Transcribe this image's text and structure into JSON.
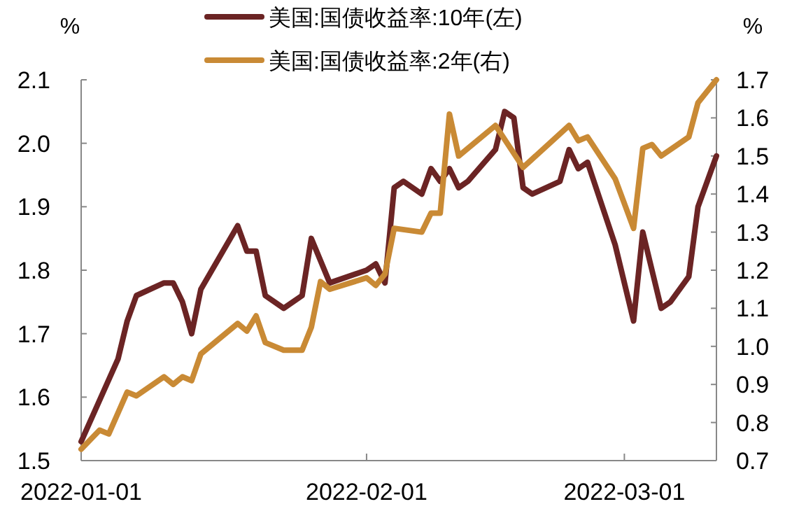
{
  "chart_data": {
    "type": "line",
    "ylabel": "%",
    "y2label": "%",
    "legend": "top",
    "grid": false,
    "marker": "none",
    "line_style": "solid",
    "xlim": [
      "2022-01-01",
      "2022-03-11"
    ],
    "xticks": [
      "2022-01-01",
      "2022-02-01",
      "2022-03-01"
    ],
    "ylim": [
      1.5,
      2.1
    ],
    "yticks": [
      1.5,
      1.6,
      1.7,
      1.8,
      1.9,
      {
        "value": 2,
        "label": "2.0"
      },
      2.1
    ],
    "y2lim": [
      0.7,
      1.7
    ],
    "y2ticks": [
      0.7,
      0.8,
      0.9,
      {
        "value": 1,
        "label": "1.0"
      },
      1.1,
      1.2,
      1.3,
      1.4,
      1.5,
      1.6,
      1.7
    ],
    "series": [
      {
        "name": "美国:国债收益率:10年(左)",
        "color": "#6b2424",
        "x": [
          "2022-01-01",
          "2022-01-05",
          "2022-01-06",
          "2022-01-07",
          "2022-01-10",
          "2022-01-11",
          "2022-01-12",
          "2022-01-13",
          "2022-01-14",
          "2022-01-18",
          "2022-01-19",
          "2022-01-20",
          "2022-01-21",
          "2022-01-23",
          "2022-01-25",
          "2022-01-26",
          "2022-01-28",
          "2022-02-01",
          "2022-02-02",
          "2022-02-03",
          "2022-02-04",
          "2022-02-05",
          "2022-02-07",
          "2022-02-08",
          "2022-02-09",
          "2022-02-10",
          "2022-02-11",
          "2022-02-12",
          "2022-02-15",
          "2022-02-16",
          "2022-02-17",
          "2022-02-18",
          "2022-02-19",
          "2022-02-22",
          "2022-02-23",
          "2022-02-24",
          "2022-02-25",
          "2022-02-28",
          "2022-03-02",
          "2022-03-03",
          "2022-03-05",
          "2022-03-06",
          "2022-03-08",
          "2022-03-09",
          "2022-03-11"
        ],
        "values": [
          1.53,
          1.66,
          1.72,
          1.76,
          1.78,
          1.78,
          1.75,
          1.7,
          1.77,
          1.87,
          1.83,
          1.83,
          1.76,
          1.74,
          1.76,
          1.85,
          1.78,
          1.8,
          1.81,
          1.78,
          1.93,
          1.94,
          1.92,
          1.96,
          1.94,
          1.96,
          1.93,
          1.94,
          1.99,
          2.05,
          2.04,
          1.93,
          1.92,
          1.94,
          1.99,
          1.96,
          1.97,
          1.84,
          1.72,
          1.86,
          1.74,
          1.75,
          1.79,
          1.9,
          1.98
        ]
      },
      {
        "name": "美国:国债收益率:2年(右)",
        "color": "#c98a35",
        "axis": "y2",
        "x": [
          "2022-01-01",
          "2022-01-03",
          "2022-01-04",
          "2022-01-06",
          "2022-01-07",
          "2022-01-10",
          "2022-01-11",
          "2022-01-12",
          "2022-01-13",
          "2022-01-14",
          "2022-01-18",
          "2022-01-19",
          "2022-01-20",
          "2022-01-21",
          "2022-01-23",
          "2022-01-25",
          "2022-01-26",
          "2022-01-27",
          "2022-01-28",
          "2022-02-01",
          "2022-02-02",
          "2022-02-03",
          "2022-02-04",
          "2022-02-07",
          "2022-02-08",
          "2022-02-09",
          "2022-02-10",
          "2022-02-11",
          "2022-02-15",
          "2022-02-18",
          "2022-02-23",
          "2022-02-24",
          "2022-02-25",
          "2022-02-28",
          "2022-03-02",
          "2022-03-03",
          "2022-03-04",
          "2022-03-05",
          "2022-03-08",
          "2022-03-09",
          "2022-03-11"
        ],
        "values": [
          0.73,
          0.78,
          0.77,
          0.88,
          0.87,
          0.92,
          0.9,
          0.92,
          0.91,
          0.98,
          1.06,
          1.04,
          1.08,
          1.01,
          0.99,
          0.99,
          1.05,
          1.17,
          1.15,
          1.18,
          1.16,
          1.19,
          1.31,
          1.3,
          1.35,
          1.35,
          1.61,
          1.5,
          1.58,
          1.47,
          1.58,
          1.54,
          1.55,
          1.44,
          1.31,
          1.52,
          1.53,
          1.5,
          1.55,
          1.64,
          1.7
        ]
      }
    ]
  }
}
